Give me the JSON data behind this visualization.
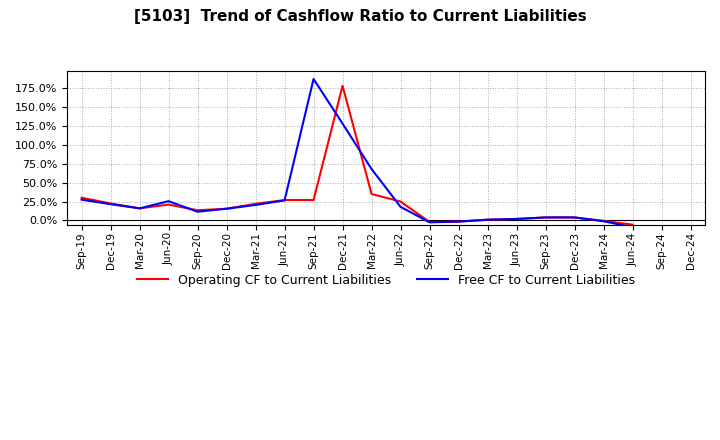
{
  "title": "[5103]  Trend of Cashflow Ratio to Current Liabilities",
  "x_labels": [
    "Sep-19",
    "Dec-19",
    "Mar-20",
    "Jun-20",
    "Sep-20",
    "Dec-20",
    "Mar-21",
    "Jun-21",
    "Sep-21",
    "Dec-21",
    "Mar-22",
    "Jun-22",
    "Sep-22",
    "Dec-22",
    "Mar-23",
    "Jun-23",
    "Sep-23",
    "Dec-23",
    "Mar-24",
    "Jun-24",
    "Sep-24",
    "Dec-24"
  ],
  "operating_cf": [
    0.3,
    0.225,
    0.16,
    0.21,
    0.135,
    0.155,
    0.22,
    0.27,
    0.27,
    1.78,
    0.35,
    0.25,
    -0.02,
    -0.015,
    0.01,
    0.02,
    0.04,
    0.04,
    -0.005,
    -0.055,
    null,
    null
  ],
  "free_cf": [
    0.275,
    0.215,
    0.16,
    0.255,
    0.115,
    0.155,
    0.205,
    0.265,
    1.87,
    1.28,
    0.68,
    0.18,
    -0.025,
    -0.015,
    0.01,
    0.02,
    0.04,
    0.04,
    -0.01,
    -0.09,
    null,
    null
  ],
  "operating_color": "#FF0000",
  "free_color": "#0000FF",
  "yticks": [
    0.0,
    0.25,
    0.5,
    0.75,
    1.0,
    1.25,
    1.5,
    1.75
  ],
  "ylim_min": -0.055,
  "ylim_max": 1.97,
  "background_color": "#FFFFFF",
  "grid_color": "#AAAAAA",
  "legend_label_op": "Operating CF to Current Liabilities",
  "legend_label_fr": "Free CF to Current Liabilities"
}
